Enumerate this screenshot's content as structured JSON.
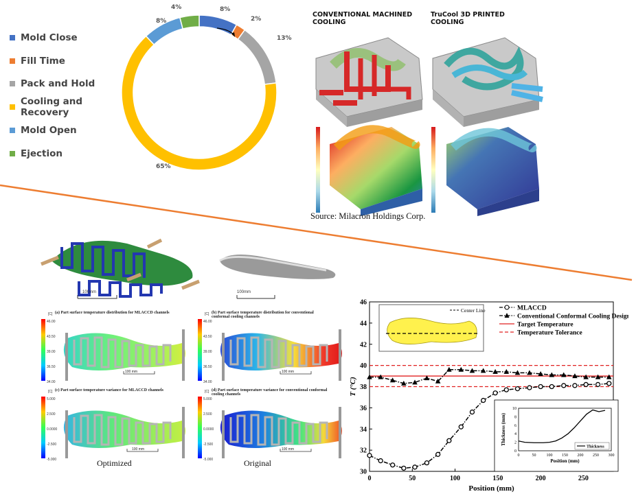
{
  "donut": {
    "legend": [
      {
        "label": "Mold Close",
        "color": "#4472c4"
      },
      {
        "label": "Fill Time",
        "color": "#ed7d31"
      },
      {
        "label": "Pack and Hold",
        "color": "#a5a5a5"
      },
      {
        "label": "Cooling and Recovery",
        "color": "#ffc000"
      },
      {
        "label": "Mold Open",
        "color": "#5b9bd5"
      },
      {
        "label": "Ejection",
        "color": "#70ad47"
      }
    ]
  },
  "mold": {
    "conventional_title": "CONVENTIONAL MACHINED\nCOOLING",
    "trucool_title": "TruCool 3D PRINTED\nCOOLING",
    "source": "Source: Milacron Holdings Corp."
  },
  "insole": {
    "scale_left": "100mm",
    "scale_right": "100mm",
    "panel_a": "(a) Part surface temperature distribution for MLACCD channels",
    "panel_b": "(b) Part surface temperature distribution for conventional conformal cooling channels",
    "panel_c": "(c) Part surface temperature variance for MLACCD channels",
    "panel_d": "(d) Part surface temperature variance for conventional conformal cooling channels",
    "scale_bar": "100 mm",
    "unit": "[C]",
    "cb_top": [
      "46.00",
      "43.50",
      "39.00",
      "36.50",
      "34.00"
    ],
    "cb_bottom": [
      "5.000",
      "2.500",
      "0.0000",
      "-2.500",
      "-5.000"
    ],
    "optimized": "Optimized",
    "original": "Original"
  },
  "colors": {
    "donut_divider": "#ed7d31"
  },
  "chart_data": [
    {
      "type": "pie",
      "title": "",
      "categories": [
        "Mold Close",
        "Fill Time",
        "Pack and Hold",
        "Cooling and Recovery",
        "Mold Open",
        "Ejection"
      ],
      "values": [
        8,
        2,
        13,
        65,
        8,
        4
      ],
      "data_labels": [
        "8%",
        "2%",
        "13%",
        "65%",
        "8%",
        "4%"
      ],
      "colors": [
        "#4472c4",
        "#ed7d31",
        "#a5a5a5",
        "#ffc000",
        "#5b9bd5",
        "#70ad47"
      ],
      "legend_placement": "left"
    },
    {
      "type": "line",
      "title": "",
      "xlabel": "Position (mm)",
      "ylabel": "T (°C)",
      "xlim": [
        0,
        285
      ],
      "ylim": [
        30,
        46
      ],
      "xticks": [
        0,
        50,
        100,
        150,
        200,
        250
      ],
      "yticks": [
        30,
        32,
        34,
        36,
        38,
        40,
        42,
        44,
        46
      ],
      "legend": [
        "MLACCD",
        "Conventional Conformal Cooling Design",
        "Target Temperature",
        "Temperature Tolerance"
      ],
      "series": [
        {
          "name": "MLACCD",
          "x": [
            0,
            13,
            27,
            40,
            53,
            67,
            80,
            93,
            107,
            120,
            133,
            147,
            160,
            173,
            187,
            200,
            213,
            227,
            240,
            253,
            267,
            280
          ],
          "y": [
            31.5,
            31.0,
            30.6,
            30.3,
            30.4,
            30.8,
            31.6,
            32.9,
            34.2,
            35.6,
            36.7,
            37.4,
            37.7,
            37.8,
            37.9,
            38.0,
            38.0,
            38.1,
            38.1,
            38.2,
            38.2,
            38.3
          ]
        },
        {
          "name": "Conventional Conformal Cooling Design",
          "x": [
            0,
            13,
            27,
            40,
            53,
            67,
            80,
            93,
            107,
            120,
            133,
            147,
            160,
            173,
            187,
            200,
            213,
            227,
            240,
            253,
            267,
            280
          ],
          "y": [
            38.9,
            38.9,
            38.6,
            38.3,
            38.4,
            38.8,
            38.5,
            39.6,
            39.6,
            39.5,
            39.5,
            39.4,
            39.4,
            39.3,
            39.3,
            39.2,
            39.1,
            39.1,
            39.0,
            38.9,
            38.9,
            38.9
          ]
        },
        {
          "name": "Target Temperature",
          "x": [
            0,
            285
          ],
          "y": [
            39,
            39
          ]
        },
        {
          "name": "Temperature Tolerance",
          "x": [
            0,
            285
          ],
          "y": [
            40,
            40
          ]
        },
        {
          "name": "Temperature Tolerance",
          "x": [
            0,
            285
          ],
          "y": [
            38,
            38
          ]
        }
      ],
      "inset_legend": "Center Line"
    },
    {
      "type": "line",
      "title": "",
      "xlabel": "Position (mm)",
      "ylabel": "Thickness (mm)",
      "xlim": [
        0,
        300
      ],
      "ylim": [
        0,
        10
      ],
      "xticks": [
        0,
        50,
        100,
        150,
        200,
        250,
        300
      ],
      "yticks": [
        0,
        2,
        4,
        6,
        8,
        10
      ],
      "legend": [
        "Thickness"
      ],
      "series": [
        {
          "name": "Thickness",
          "x": [
            0,
            20,
            50,
            80,
            100,
            120,
            140,
            160,
            180,
            200,
            220,
            240,
            260,
            280
          ],
          "y": [
            2.3,
            2.0,
            1.9,
            1.9,
            2.0,
            2.3,
            3.0,
            4.0,
            5.4,
            7.0,
            8.6,
            9.6,
            9.2,
            9.5
          ]
        }
      ]
    }
  ]
}
